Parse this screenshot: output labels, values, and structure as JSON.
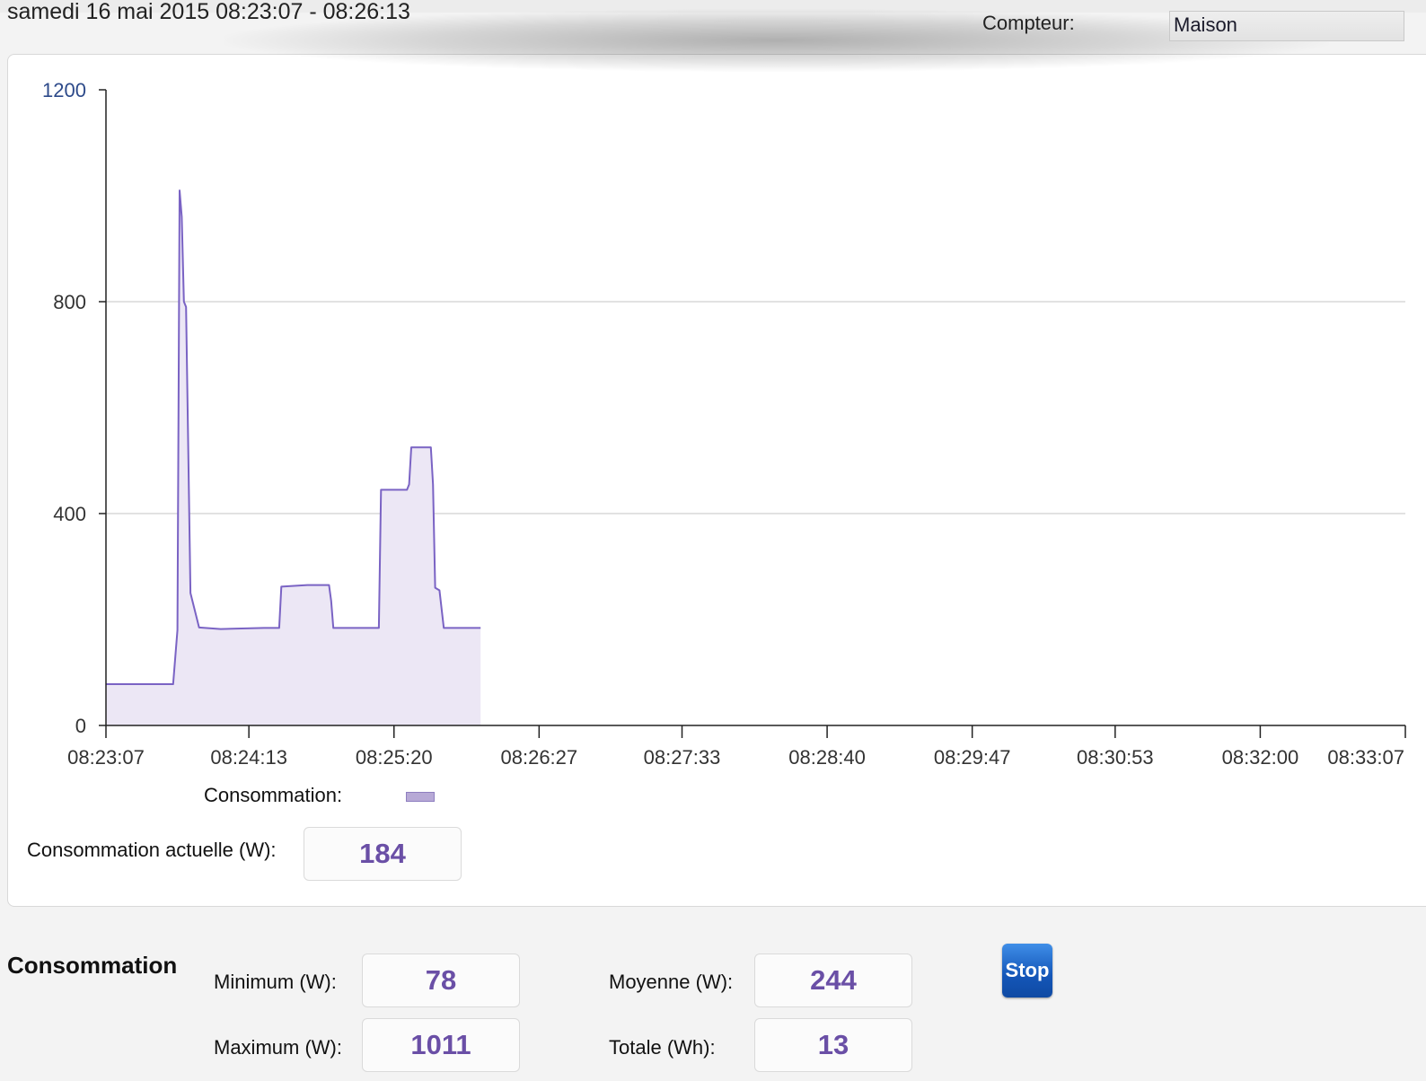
{
  "header": {
    "range_title": "samedi 16 mai 2015 08:23:07 - 08:26:13",
    "compteur_label": "Compteur:",
    "compteur_value": "Maison"
  },
  "legend": {
    "label": "Consommation:"
  },
  "current": {
    "label": "Consommation actuelle (W):",
    "value": "184"
  },
  "stats": {
    "title": "Consommation",
    "min_label": "Minimum (W):",
    "min_value": "78",
    "max_label": "Maximum (W):",
    "max_value": "1011",
    "avg_label": "Moyenne (W):",
    "avg_value": "244",
    "total_label": "Totale (Wh):",
    "total_value": "13",
    "stop_label": "Stop"
  },
  "colors": {
    "line": "#7a63c4",
    "fill": "#ece7f5",
    "grid": "#d9d9d9",
    "value_text": "#6a4fa6"
  },
  "chart_data": {
    "type": "area",
    "title": "",
    "xlabel": "",
    "ylabel": "",
    "ylim": [
      0,
      1200
    ],
    "yticks": [
      0,
      400,
      800,
      1200
    ],
    "xlim": [
      "08:23:07",
      "08:33:07"
    ],
    "xticks": [
      "08:23:07",
      "08:24:13",
      "08:25:20",
      "08:26:27",
      "08:27:33",
      "08:28:40",
      "08:29:47",
      "08:30:53",
      "08:32:00",
      "08:33:07"
    ],
    "grid": "horizontal",
    "legend_position": "bottom-left",
    "series": [
      {
        "name": "Consommation",
        "x": [
          "08:23:07",
          "08:23:38",
          "08:23:40",
          "08:23:41",
          "08:23:42",
          "08:23:43",
          "08:23:44",
          "08:23:46",
          "08:23:50",
          "08:24:00",
          "08:24:20",
          "08:24:27",
          "08:24:28",
          "08:24:40",
          "08:24:50",
          "08:24:51",
          "08:24:52",
          "08:25:12",
          "08:25:13",
          "08:25:14",
          "08:25:26",
          "08:25:27",
          "08:25:28",
          "08:25:37",
          "08:25:38",
          "08:25:39",
          "08:25:41",
          "08:25:43",
          "08:26:00"
        ],
        "y": [
          78,
          78,
          180,
          1010,
          960,
          800,
          790,
          250,
          185,
          182,
          184,
          184,
          262,
          265,
          265,
          235,
          184,
          184,
          184,
          445,
          445,
          455,
          525,
          525,
          455,
          260,
          255,
          184,
          184
        ]
      }
    ]
  }
}
